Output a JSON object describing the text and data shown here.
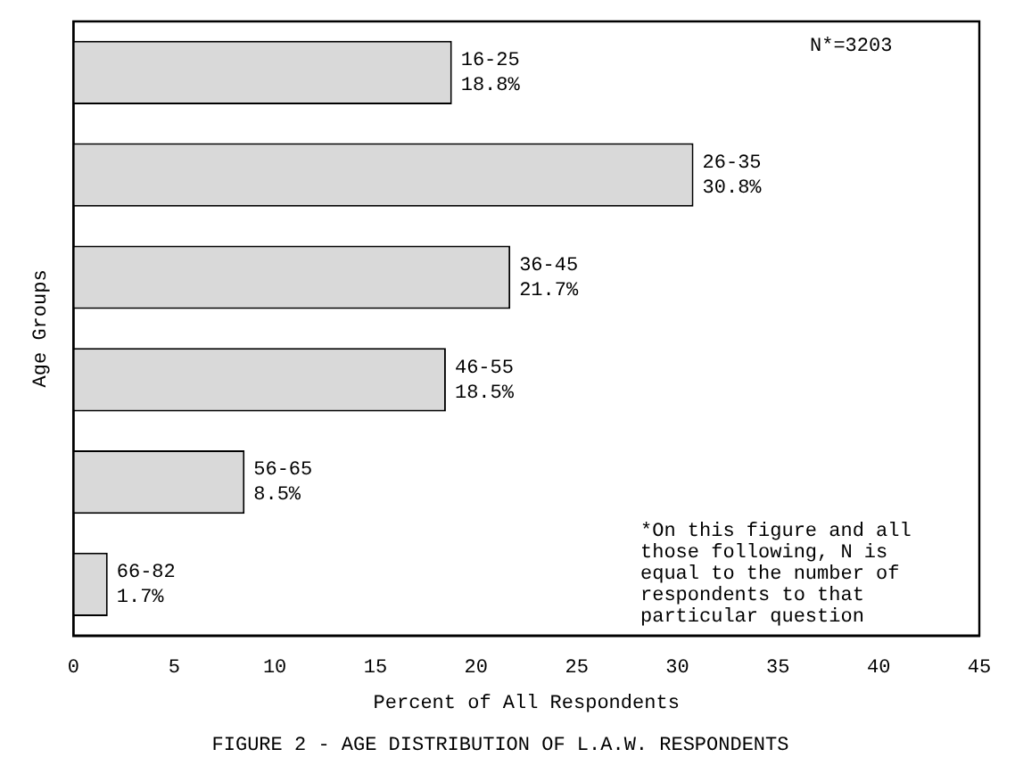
{
  "chart_data": {
    "type": "bar",
    "orientation": "horizontal",
    "title": "FIGURE 2 - AGE DISTRIBUTION OF L.A.W. RESPONDENTS",
    "xlabel": "Percent of All Respondents",
    "ylabel": "Age Groups",
    "categories": [
      "16-25",
      "26-35",
      "36-45",
      "46-55",
      "56-65",
      "66-82"
    ],
    "values": [
      18.8,
      30.8,
      21.7,
      18.5,
      8.5,
      1.7
    ],
    "value_labels": [
      "18.8%",
      "30.8%",
      "21.7%",
      "18.5%",
      "8.5%",
      "1.7%"
    ],
    "color": "#d9d9d9",
    "xlim": [
      0,
      45
    ],
    "xticks": [
      0,
      5,
      10,
      15,
      20,
      25,
      30,
      35,
      40,
      45
    ],
    "tick_labels": "x",
    "grid": false,
    "legend": false,
    "annotations": [
      "N*=3203",
      "*On this figure and all those following, N is equal to the number of respondents to that particular question"
    ]
  }
}
